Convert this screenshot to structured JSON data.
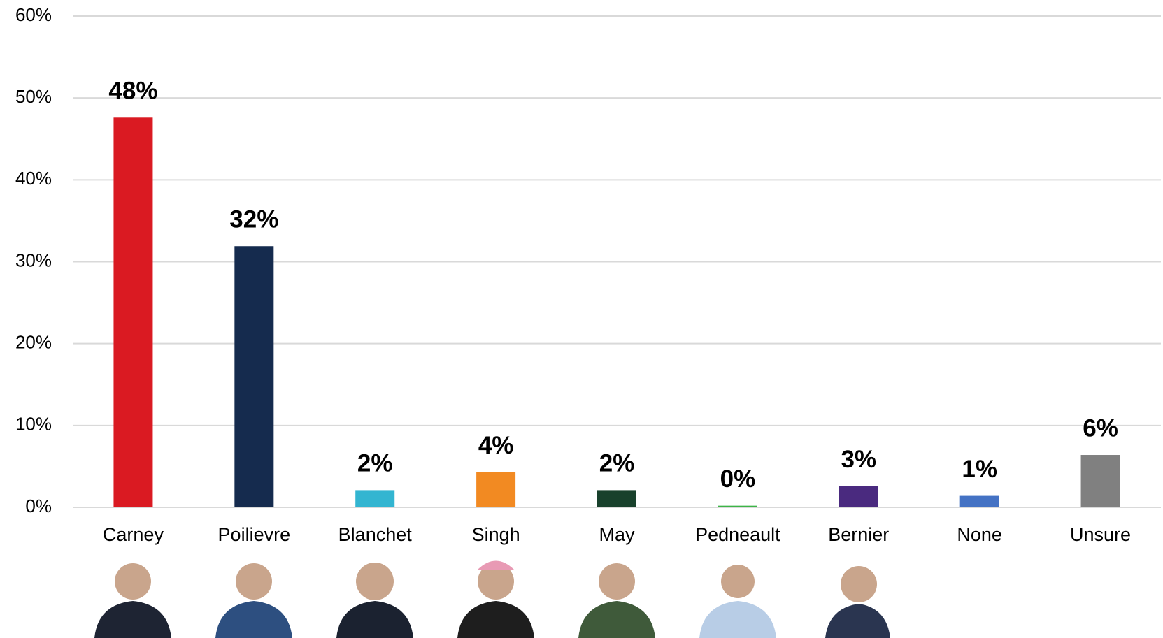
{
  "chart_data": {
    "type": "bar",
    "categories": [
      "Carney",
      "Poilievre",
      "Blanchet",
      "Singh",
      "May",
      "Pedneault",
      "Bernier",
      "None",
      "Unsure"
    ],
    "values": [
      47.6,
      31.9,
      2.1,
      4.3,
      2.1,
      0.2,
      2.6,
      1.4,
      6.4
    ],
    "value_labels": [
      "48%",
      "32%",
      "2%",
      "4%",
      "2%",
      "0%",
      "3%",
      "1%",
      "6%"
    ],
    "colors": [
      "#da1a22",
      "#152b4e",
      "#33b5d1",
      "#f28a22",
      "#18412c",
      "#3db447",
      "#4a2a7f",
      "#4472c4",
      "#808080"
    ],
    "ylim": [
      0,
      60
    ],
    "yticks": [
      {
        "value": 0,
        "label": "0%"
      },
      {
        "value": 10,
        "label": "10%"
      },
      {
        "value": 20,
        "label": "20%"
      },
      {
        "value": 30,
        "label": "30%"
      },
      {
        "value": 40,
        "label": "40%"
      },
      {
        "value": 50,
        "label": "50%"
      },
      {
        "value": 60,
        "label": "60%"
      }
    ],
    "grid": true
  }
}
